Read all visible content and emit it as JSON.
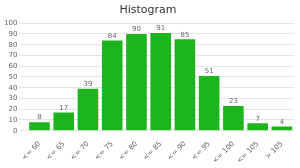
{
  "chart_data": {
    "type": "bar",
    "title": "Histogram",
    "categories": [
      "<= 60",
      "<= 65",
      "<= 70",
      "<= 75",
      "<= 80",
      "<= 85",
      "<= 90",
      "<= 95",
      "<= 100",
      "<= 105",
      "> 105"
    ],
    "values": [
      8,
      17,
      39,
      84,
      90,
      91,
      85,
      51,
      23,
      7,
      4
    ],
    "color": "#1db51d",
    "ylim": [
      0,
      100
    ],
    "yticks": [
      0,
      10,
      20,
      30,
      40,
      50,
      60,
      70,
      80,
      90,
      100
    ],
    "grid": true,
    "data_labels": true
  }
}
